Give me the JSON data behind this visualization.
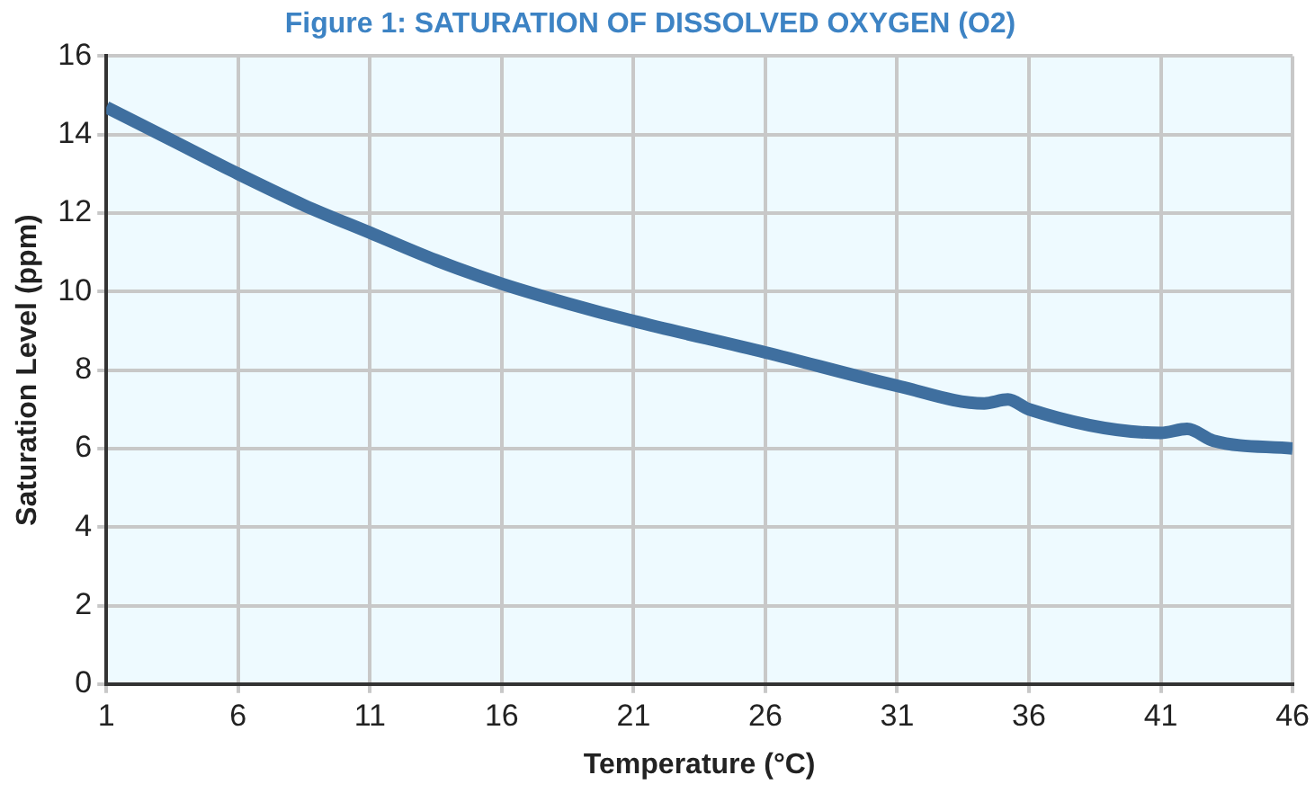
{
  "chart_data": {
    "type": "line",
    "title": "Figure 1: SATURATION OF DISSOLVED OXYGEN (O2)",
    "xlabel": "Temperature (°C)",
    "ylabel": "Saturation Level (ppm)",
    "x": [
      1,
      3.5,
      6,
      8.5,
      11,
      13.5,
      16,
      18.5,
      21,
      26,
      31,
      34.3,
      35.2,
      36,
      41,
      42,
      43,
      46
    ],
    "series": [
      {
        "color": "#3f6f9f",
        "values": [
          14.7,
          13.85,
          13.0,
          12.2,
          11.5,
          10.8,
          10.2,
          9.7,
          9.25,
          8.45,
          7.6,
          7.15,
          7.25,
          7.0,
          6.4,
          6.5,
          6.2,
          6.0
        ]
      }
    ],
    "xlim": [
      1,
      46
    ],
    "xticks": [
      1,
      6,
      11,
      16,
      21,
      26,
      31,
      36,
      41,
      46
    ],
    "ylim": [
      0,
      16
    ],
    "yticks": [
      0,
      2,
      4,
      6,
      8,
      10,
      12,
      14,
      16
    ],
    "grid": true,
    "legend": false,
    "marker": "none",
    "line_style": "solid"
  }
}
